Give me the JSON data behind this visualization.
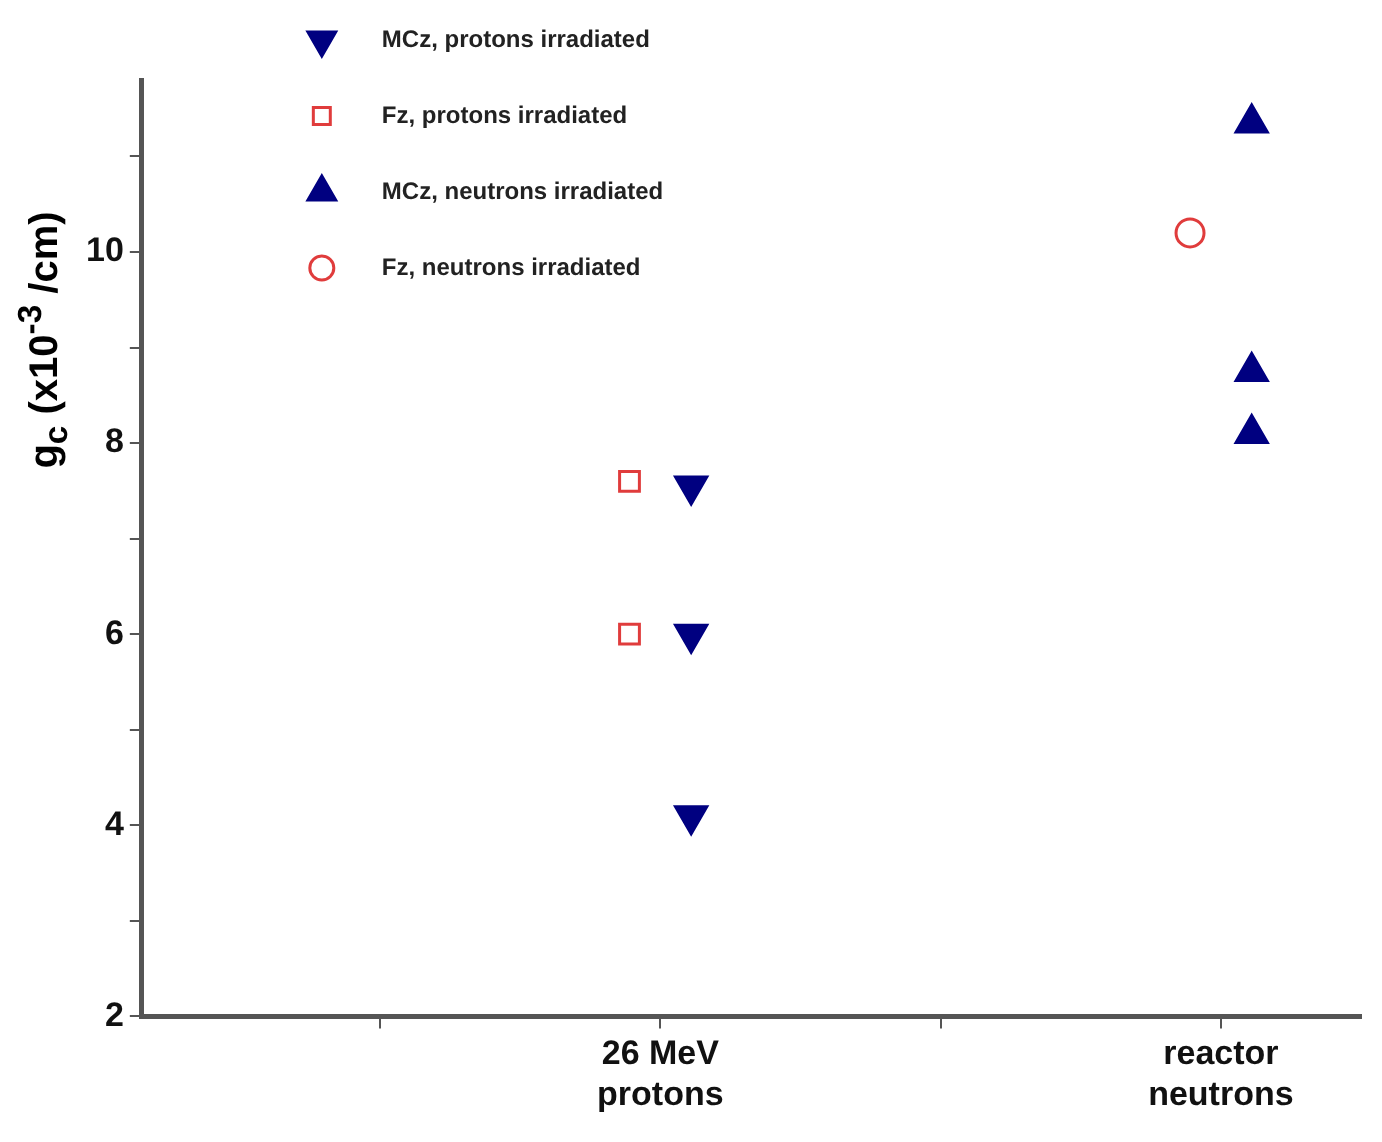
{
  "chart_data": {
    "type": "scatter",
    "ylabel": "g$_{c}$ (x10$^{-3}$ /cm)",
    "categories": [
      null,
      "26 MeV protons",
      null,
      "reactor neutrons"
    ],
    "ylim": [
      2,
      11.8
    ],
    "yticks": [
      2,
      {
        "value": 3,
        "label": null
      },
      4,
      {
        "value": 5,
        "label": null
      },
      6,
      {
        "value": 7,
        "label": null
      },
      8,
      {
        "value": 9,
        "label": null
      },
      10,
      {
        "value": 11,
        "label": null
      }
    ],
    "grid": false,
    "legend": "top left",
    "series": [
      {
        "name": "MCz, protons irradiated",
        "color": "#000080",
        "marker": "triangle-down",
        "x": [
          "26 MeV protons",
          "26 MeV protons",
          "26 MeV protons"
        ],
        "values": [
          7.55,
          6.0,
          4.1
        ]
      },
      {
        "name": "Fz, protons irradiated",
        "color": "#e03c3c",
        "marker": "square",
        "x": [
          "26 MeV protons",
          "26 MeV protons"
        ],
        "values": [
          7.6,
          6.0
        ]
      },
      {
        "name": "MCz, neutrons irradiated",
        "color": "#000080",
        "marker": "triangle",
        "x": [
          "reactor neutrons",
          "reactor neutrons",
          "reactor neutrons"
        ],
        "values": [
          11.35,
          8.75,
          8.1
        ]
      },
      {
        "name": "Fz, neutrons irradiated",
        "color": "#e03c3c",
        "marker": "circle",
        "x": [
          "reactor neutrons"
        ],
        "values": [
          10.2
        ]
      }
    ]
  }
}
